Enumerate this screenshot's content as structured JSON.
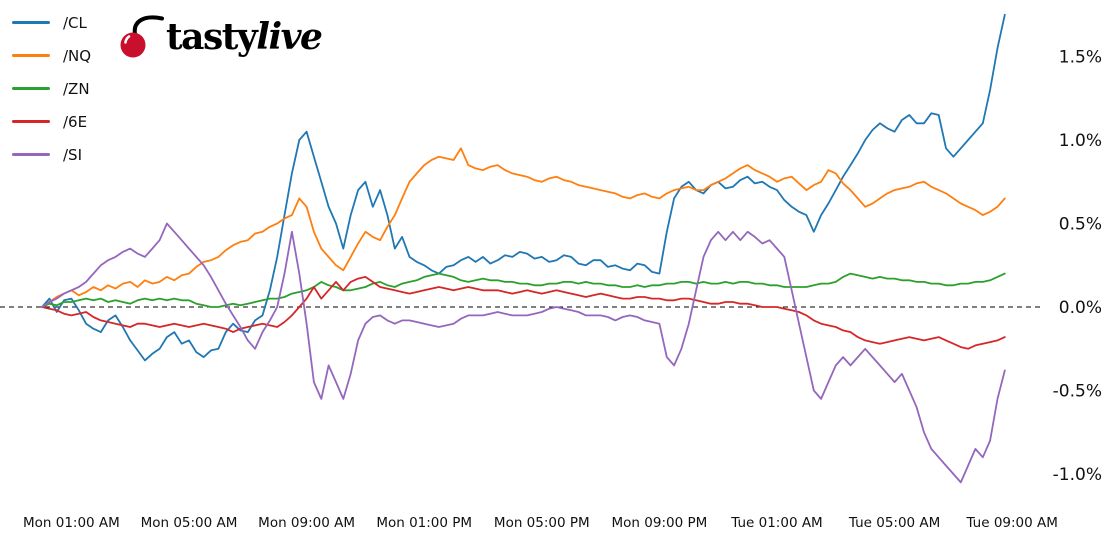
{
  "logo": {
    "part1": "tasty",
    "part2": "live",
    "cherry_color": "#c8102e",
    "stem_color": "#000000",
    "text_color": "#000000"
  },
  "chart_data": {
    "type": "line",
    "title": "",
    "xlabel": "",
    "ylabel": "",
    "grid": false,
    "legend_position": "top-left",
    "x_unit": "hours since Mon 12:00 AM",
    "x_start_hour": 0,
    "x_step_hours": 0.25,
    "ylim": [
      -1.15,
      1.8
    ],
    "zero_line": {
      "style": "dashed",
      "color": "#000000",
      "value": 0
    },
    "x_ticks": [
      {
        "label": "Mon 01:00 AM",
        "t": 1
      },
      {
        "label": "Mon 05:00 AM",
        "t": 5
      },
      {
        "label": "Mon 09:00 AM",
        "t": 9
      },
      {
        "label": "Mon 01:00 PM",
        "t": 13
      },
      {
        "label": "Mon 05:00 PM",
        "t": 17
      },
      {
        "label": "Mon 09:00 PM",
        "t": 21
      },
      {
        "label": "Tue 01:00 AM",
        "t": 25
      },
      {
        "label": "Tue 05:00 AM",
        "t": 29
      },
      {
        "label": "Tue 09:00 AM",
        "t": 33
      }
    ],
    "y_ticks": [
      {
        "label": "1.5%",
        "v": 1.5
      },
      {
        "label": "1.0%",
        "v": 1.0
      },
      {
        "label": "0.5%",
        "v": 0.5
      },
      {
        "label": "0.0%",
        "v": 0.0
      },
      {
        "label": "-0.5%",
        "v": -0.5
      },
      {
        "label": "-1.0%",
        "v": -1.0
      }
    ],
    "series": [
      {
        "name": "/CL",
        "color": "#1f77b4",
        "values": [
          0.0,
          0.05,
          -0.03,
          0.04,
          0.05,
          -0.02,
          -0.1,
          -0.13,
          -0.15,
          -0.08,
          -0.05,
          -0.12,
          -0.2,
          -0.26,
          -0.32,
          -0.28,
          -0.25,
          -0.18,
          -0.15,
          -0.22,
          -0.2,
          -0.27,
          -0.3,
          -0.26,
          -0.25,
          -0.15,
          -0.1,
          -0.14,
          -0.15,
          -0.08,
          -0.05,
          0.1,
          0.3,
          0.55,
          0.8,
          1.0,
          1.05,
          0.9,
          0.75,
          0.6,
          0.5,
          0.35,
          0.55,
          0.7,
          0.75,
          0.6,
          0.7,
          0.55,
          0.35,
          0.42,
          0.3,
          0.27,
          0.25,
          0.22,
          0.2,
          0.24,
          0.25,
          0.28,
          0.3,
          0.27,
          0.3,
          0.26,
          0.28,
          0.31,
          0.3,
          0.33,
          0.32,
          0.29,
          0.3,
          0.27,
          0.28,
          0.31,
          0.3,
          0.26,
          0.25,
          0.28,
          0.28,
          0.24,
          0.25,
          0.23,
          0.22,
          0.26,
          0.25,
          0.21,
          0.2,
          0.45,
          0.65,
          0.72,
          0.75,
          0.7,
          0.68,
          0.73,
          0.75,
          0.71,
          0.72,
          0.76,
          0.78,
          0.74,
          0.75,
          0.72,
          0.7,
          0.64,
          0.6,
          0.57,
          0.55,
          0.45,
          0.55,
          0.62,
          0.7,
          0.78,
          0.85,
          0.92,
          1.0,
          1.06,
          1.1,
          1.07,
          1.05,
          1.12,
          1.15,
          1.1,
          1.1,
          1.16,
          1.15,
          0.95,
          0.9,
          0.95,
          1.0,
          1.05,
          1.1,
          1.3,
          1.55,
          1.75
        ]
      },
      {
        "name": "/NQ",
        "color": "#ff7f0e",
        "values": [
          0.0,
          0.03,
          0.06,
          0.08,
          0.1,
          0.07,
          0.09,
          0.12,
          0.1,
          0.13,
          0.11,
          0.14,
          0.15,
          0.12,
          0.16,
          0.14,
          0.15,
          0.18,
          0.16,
          0.19,
          0.2,
          0.24,
          0.27,
          0.28,
          0.3,
          0.34,
          0.37,
          0.39,
          0.4,
          0.44,
          0.45,
          0.48,
          0.5,
          0.53,
          0.55,
          0.65,
          0.6,
          0.45,
          0.35,
          0.3,
          0.25,
          0.22,
          0.3,
          0.38,
          0.45,
          0.42,
          0.4,
          0.48,
          0.55,
          0.65,
          0.75,
          0.8,
          0.85,
          0.88,
          0.9,
          0.89,
          0.88,
          0.95,
          0.85,
          0.83,
          0.82,
          0.84,
          0.85,
          0.82,
          0.8,
          0.79,
          0.78,
          0.76,
          0.75,
          0.77,
          0.78,
          0.76,
          0.75,
          0.73,
          0.72,
          0.71,
          0.7,
          0.69,
          0.68,
          0.66,
          0.65,
          0.67,
          0.68,
          0.66,
          0.65,
          0.68,
          0.7,
          0.71,
          0.72,
          0.7,
          0.7,
          0.73,
          0.75,
          0.77,
          0.8,
          0.83,
          0.85,
          0.82,
          0.8,
          0.78,
          0.75,
          0.77,
          0.78,
          0.74,
          0.7,
          0.73,
          0.75,
          0.82,
          0.8,
          0.74,
          0.7,
          0.65,
          0.6,
          0.62,
          0.65,
          0.68,
          0.7,
          0.71,
          0.72,
          0.74,
          0.75,
          0.72,
          0.7,
          0.68,
          0.65,
          0.62,
          0.6,
          0.58,
          0.55,
          0.57,
          0.6,
          0.65
        ]
      },
      {
        "name": "/ZN",
        "color": "#2ca02c",
        "values": [
          0.0,
          0.02,
          0.01,
          0.03,
          0.03,
          0.04,
          0.05,
          0.04,
          0.05,
          0.03,
          0.04,
          0.03,
          0.02,
          0.04,
          0.05,
          0.04,
          0.05,
          0.04,
          0.05,
          0.04,
          0.04,
          0.02,
          0.01,
          0.0,
          0.0,
          0.01,
          0.02,
          0.01,
          0.02,
          0.03,
          0.04,
          0.05,
          0.05,
          0.06,
          0.08,
          0.09,
          0.1,
          0.12,
          0.15,
          0.13,
          0.12,
          0.1,
          0.1,
          0.11,
          0.12,
          0.14,
          0.15,
          0.13,
          0.12,
          0.14,
          0.15,
          0.16,
          0.18,
          0.19,
          0.2,
          0.19,
          0.18,
          0.16,
          0.15,
          0.16,
          0.17,
          0.16,
          0.16,
          0.15,
          0.15,
          0.14,
          0.14,
          0.13,
          0.13,
          0.14,
          0.14,
          0.15,
          0.15,
          0.14,
          0.15,
          0.14,
          0.14,
          0.13,
          0.13,
          0.12,
          0.12,
          0.13,
          0.12,
          0.13,
          0.13,
          0.14,
          0.14,
          0.15,
          0.15,
          0.14,
          0.15,
          0.14,
          0.14,
          0.15,
          0.14,
          0.15,
          0.15,
          0.14,
          0.14,
          0.13,
          0.13,
          0.12,
          0.12,
          0.12,
          0.12,
          0.13,
          0.14,
          0.14,
          0.15,
          0.18,
          0.2,
          0.19,
          0.18,
          0.17,
          0.18,
          0.17,
          0.17,
          0.16,
          0.16,
          0.15,
          0.15,
          0.14,
          0.14,
          0.13,
          0.13,
          0.14,
          0.14,
          0.15,
          0.15,
          0.16,
          0.18,
          0.2
        ]
      },
      {
        "name": "/6E",
        "color": "#d62728",
        "values": [
          0.0,
          -0.01,
          -0.02,
          -0.04,
          -0.05,
          -0.04,
          -0.03,
          -0.06,
          -0.08,
          -0.09,
          -0.1,
          -0.11,
          -0.12,
          -0.1,
          -0.1,
          -0.11,
          -0.12,
          -0.11,
          -0.1,
          -0.11,
          -0.12,
          -0.11,
          -0.1,
          -0.11,
          -0.12,
          -0.13,
          -0.15,
          -0.13,
          -0.12,
          -0.11,
          -0.1,
          -0.11,
          -0.12,
          -0.09,
          -0.05,
          0.0,
          0.05,
          0.12,
          0.05,
          0.1,
          0.15,
          0.1,
          0.15,
          0.17,
          0.18,
          0.15,
          0.12,
          0.11,
          0.1,
          0.09,
          0.08,
          0.09,
          0.1,
          0.11,
          0.12,
          0.11,
          0.1,
          0.11,
          0.12,
          0.11,
          0.1,
          0.1,
          0.1,
          0.09,
          0.08,
          0.09,
          0.1,
          0.09,
          0.08,
          0.09,
          0.1,
          0.09,
          0.08,
          0.07,
          0.06,
          0.07,
          0.08,
          0.07,
          0.06,
          0.05,
          0.05,
          0.06,
          0.06,
          0.05,
          0.05,
          0.04,
          0.04,
          0.05,
          0.05,
          0.04,
          0.03,
          0.02,
          0.02,
          0.03,
          0.03,
          0.02,
          0.02,
          0.01,
          0.0,
          0.0,
          0.0,
          -0.01,
          -0.02,
          -0.03,
          -0.05,
          -0.08,
          -0.1,
          -0.11,
          -0.12,
          -0.14,
          -0.15,
          -0.18,
          -0.2,
          -0.21,
          -0.22,
          -0.21,
          -0.2,
          -0.19,
          -0.18,
          -0.19,
          -0.2,
          -0.19,
          -0.18,
          -0.2,
          -0.22,
          -0.24,
          -0.25,
          -0.23,
          -0.22,
          -0.21,
          -0.2,
          -0.18
        ]
      },
      {
        "name": "/SI",
        "color": "#9467bd",
        "values": [
          0.0,
          0.03,
          0.05,
          0.08,
          0.1,
          0.12,
          0.15,
          0.2,
          0.25,
          0.28,
          0.3,
          0.33,
          0.35,
          0.32,
          0.3,
          0.35,
          0.4,
          0.5,
          0.45,
          0.4,
          0.35,
          0.3,
          0.25,
          0.18,
          0.1,
          0.02,
          -0.05,
          -0.12,
          -0.2,
          -0.25,
          -0.15,
          -0.08,
          0.0,
          0.2,
          0.45,
          0.2,
          -0.1,
          -0.45,
          -0.55,
          -0.35,
          -0.45,
          -0.55,
          -0.4,
          -0.2,
          -0.1,
          -0.06,
          -0.05,
          -0.08,
          -0.1,
          -0.08,
          -0.08,
          -0.09,
          -0.1,
          -0.11,
          -0.12,
          -0.11,
          -0.1,
          -0.07,
          -0.05,
          -0.05,
          -0.05,
          -0.04,
          -0.03,
          -0.04,
          -0.05,
          -0.05,
          -0.05,
          -0.04,
          -0.03,
          -0.01,
          0.0,
          -0.01,
          -0.02,
          -0.03,
          -0.05,
          -0.05,
          -0.05,
          -0.06,
          -0.08,
          -0.06,
          -0.05,
          -0.06,
          -0.08,
          -0.09,
          -0.1,
          -0.3,
          -0.35,
          -0.25,
          -0.1,
          0.1,
          0.3,
          0.4,
          0.45,
          0.4,
          0.45,
          0.4,
          0.45,
          0.42,
          0.38,
          0.4,
          0.35,
          0.3,
          0.1,
          -0.1,
          -0.3,
          -0.5,
          -0.55,
          -0.45,
          -0.35,
          -0.3,
          -0.35,
          -0.3,
          -0.25,
          -0.3,
          -0.35,
          -0.4,
          -0.45,
          -0.4,
          -0.5,
          -0.6,
          -0.75,
          -0.85,
          -0.9,
          -0.95,
          -1.0,
          -1.05,
          -0.95,
          -0.85,
          -0.9,
          -0.8,
          -0.55,
          -0.38
        ]
      }
    ]
  }
}
